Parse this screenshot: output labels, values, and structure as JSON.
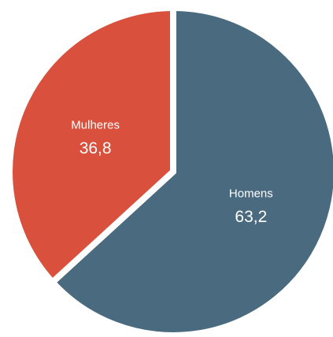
{
  "chart_data": {
    "type": "pie",
    "categories": [
      "Homens",
      "Mulheres"
    ],
    "values": [
      63.2,
      36.8
    ],
    "value_labels": [
      "63,2",
      "36,8"
    ],
    "colors": [
      "#4a6a80",
      "#d9503c"
    ]
  }
}
